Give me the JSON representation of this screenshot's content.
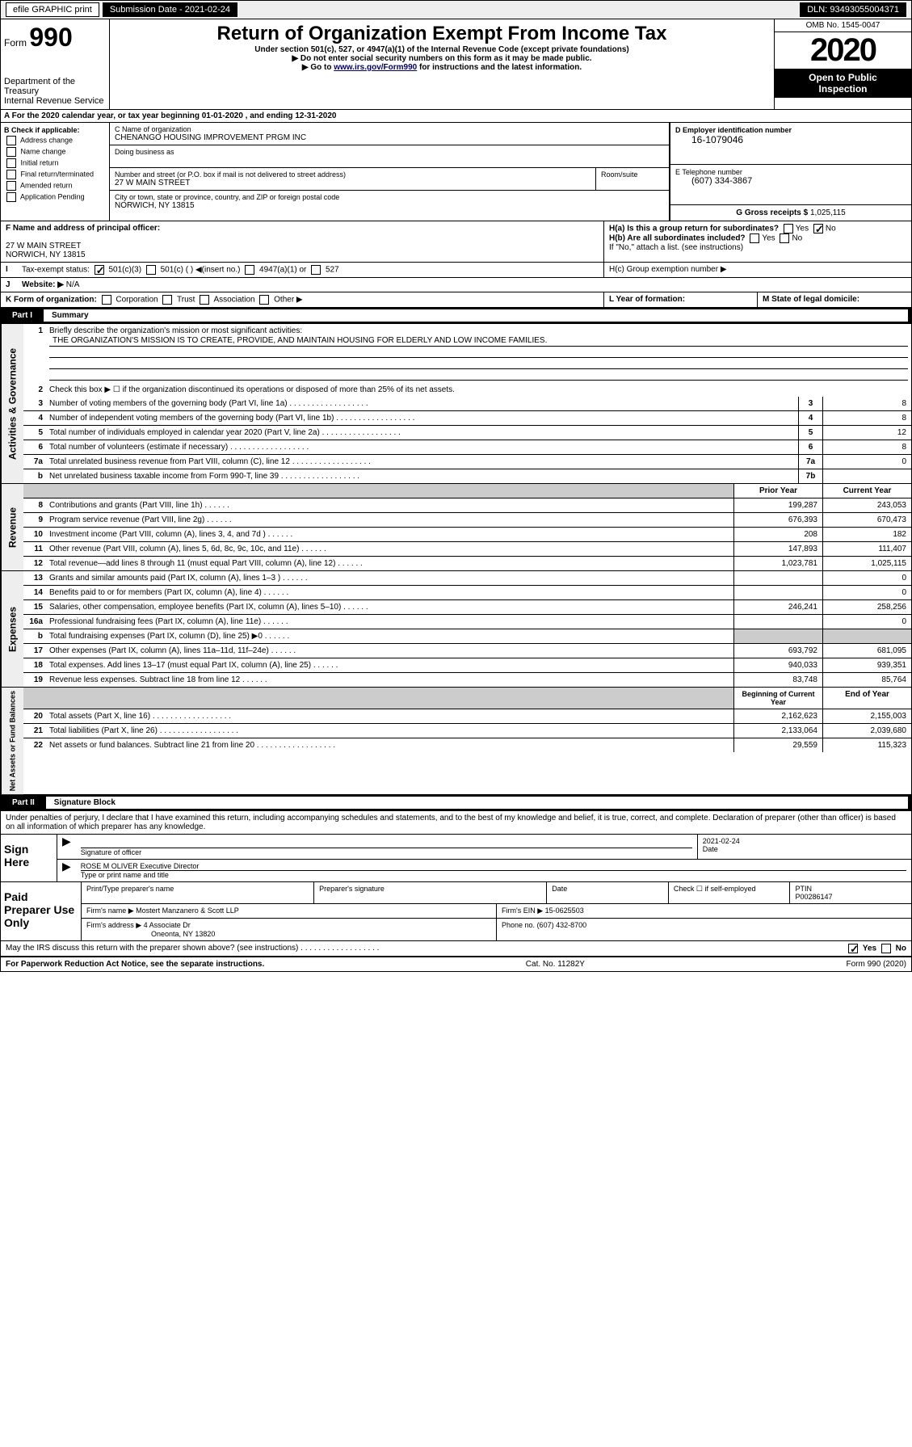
{
  "colors": {
    "black": "#000000",
    "white": "#ffffff",
    "grey_bg": "#eeeeee",
    "shade": "#cccccc",
    "link": "#000066"
  },
  "topbar": {
    "efile": "efile GRAPHIC print",
    "subdate_label": "Submission Date - 2021-02-24",
    "dln": "DLN: 93493055004371"
  },
  "header": {
    "form": "Form",
    "form_num": "990",
    "dept": "Department of the Treasury",
    "irs": "Internal Revenue Service",
    "title": "Return of Organization Exempt From Income Tax",
    "subtitle": "Under section 501(c), 527, or 4947(a)(1) of the Internal Revenue Code (except private foundations)",
    "note1": "▶ Do not enter social security numbers on this form as it may be made public.",
    "note2_pre": "▶ Go to ",
    "note2_link": "www.irs.gov/Form990",
    "note2_post": " for instructions and the latest information.",
    "omb": "OMB No. 1545-0047",
    "year": "2020",
    "open": "Open to Public",
    "insp": "Inspection"
  },
  "rowA": "A For the 2020 calendar year, or tax year beginning 01-01-2020 , and ending 12-31-2020",
  "boxB": {
    "label": "B Check if applicable:",
    "opts": [
      "Address change",
      "Name change",
      "Initial return",
      "Final return/terminated",
      "Amended return",
      "Application Pending"
    ]
  },
  "boxC": {
    "name_label": "C Name of organization",
    "name": "CHENANGO HOUSING IMPROVEMENT PRGM INC",
    "dba_label": "Doing business as",
    "addr_label": "Number and street (or P.O. box if mail is not delivered to street address)",
    "room_label": "Room/suite",
    "addr": "27 W MAIN STREET",
    "city_label": "City or town, state or province, country, and ZIP or foreign postal code",
    "city": "NORWICH, NY 13815"
  },
  "boxD": {
    "label": "D Employer identification number",
    "val": "16-1079046"
  },
  "boxE": {
    "label": "E Telephone number",
    "val": "(607) 334-3867"
  },
  "boxG": {
    "label": "G Gross receipts $",
    "val": "1,025,115"
  },
  "boxF": {
    "label": "F Name and address of principal officer:",
    "addr1": "27 W MAIN STREET",
    "addr2": "NORWICH, NY 13815"
  },
  "boxH": {
    "a": "H(a) Is this a group return for subordinates?",
    "b": "H(b) Are all subordinates included?",
    "note": "If \"No,\" attach a list. (see instructions)",
    "c": "H(c) Group exemption number ▶",
    "yes": "Yes",
    "no": "No"
  },
  "rowI": {
    "label": "I",
    "txt": "Tax-exempt status:",
    "opt1": "501(c)(3)",
    "opt2": "501(c) ( ) ◀(insert no.)",
    "opt3": "4947(a)(1) or",
    "opt4": "527"
  },
  "rowJ": {
    "label": "J",
    "txt": "Website: ▶",
    "val": "N/A"
  },
  "rowK": {
    "txt": "K Form of organization:",
    "opts": [
      "Corporation",
      "Trust",
      "Association",
      "Other ▶"
    ]
  },
  "rowL": {
    "txt": "L Year of formation:"
  },
  "rowM": {
    "txt": "M State of legal domicile:"
  },
  "part1": {
    "label": "Part I",
    "title": "Summary"
  },
  "summary": {
    "q1": "Briefly describe the organization's mission or most significant activities:",
    "mission": "THE ORGANIZATION'S MISSION IS TO CREATE, PROVIDE, AND MAINTAIN HOUSING FOR ELDERLY AND LOW INCOME FAMILIES.",
    "q2": "Check this box ▶ ☐ if the organization discontinued its operations or disposed of more than 25% of its net assets.",
    "lines": [
      {
        "n": "3",
        "t": "Number of voting members of the governing body (Part VI, line 1a)",
        "b": "3",
        "v": "8"
      },
      {
        "n": "4",
        "t": "Number of independent voting members of the governing body (Part VI, line 1b)",
        "b": "4",
        "v": "8"
      },
      {
        "n": "5",
        "t": "Total number of individuals employed in calendar year 2020 (Part V, line 2a)",
        "b": "5",
        "v": "12"
      },
      {
        "n": "6",
        "t": "Total number of volunteers (estimate if necessary)",
        "b": "6",
        "v": "8"
      },
      {
        "n": "7a",
        "t": "Total unrelated business revenue from Part VIII, column (C), line 12",
        "b": "7a",
        "v": "0"
      },
      {
        "n": "b",
        "t": "Net unrelated business taxable income from Form 990-T, line 39",
        "b": "7b",
        "v": ""
      }
    ]
  },
  "revenue": {
    "hdr_prior": "Prior Year",
    "hdr_curr": "Current Year",
    "rows": [
      {
        "n": "8",
        "t": "Contributions and grants (Part VIII, line 1h)",
        "p": "199,287",
        "c": "243,053"
      },
      {
        "n": "9",
        "t": "Program service revenue (Part VIII, line 2g)",
        "p": "676,393",
        "c": "670,473"
      },
      {
        "n": "10",
        "t": "Investment income (Part VIII, column (A), lines 3, 4, and 7d )",
        "p": "208",
        "c": "182"
      },
      {
        "n": "11",
        "t": "Other revenue (Part VIII, column (A), lines 5, 6d, 8c, 9c, 10c, and 11e)",
        "p": "147,893",
        "c": "111,407"
      },
      {
        "n": "12",
        "t": "Total revenue—add lines 8 through 11 (must equal Part VIII, column (A), line 12)",
        "p": "1,023,781",
        "c": "1,025,115"
      }
    ]
  },
  "expenses": {
    "rows": [
      {
        "n": "13",
        "t": "Grants and similar amounts paid (Part IX, column (A), lines 1–3 )",
        "p": "",
        "c": "0"
      },
      {
        "n": "14",
        "t": "Benefits paid to or for members (Part IX, column (A), line 4)",
        "p": "",
        "c": "0"
      },
      {
        "n": "15",
        "t": "Salaries, other compensation, employee benefits (Part IX, column (A), lines 5–10)",
        "p": "246,241",
        "c": "258,256"
      },
      {
        "n": "16a",
        "t": "Professional fundraising fees (Part IX, column (A), line 11e)",
        "p": "",
        "c": "0"
      },
      {
        "n": "b",
        "t": "Total fundraising expenses (Part IX, column (D), line 25) ▶0",
        "p": "shade",
        "c": "shade"
      },
      {
        "n": "17",
        "t": "Other expenses (Part IX, column (A), lines 11a–11d, 11f–24e)",
        "p": "693,792",
        "c": "681,095"
      },
      {
        "n": "18",
        "t": "Total expenses. Add lines 13–17 (must equal Part IX, column (A), line 25)",
        "p": "940,033",
        "c": "939,351"
      },
      {
        "n": "19",
        "t": "Revenue less expenses. Subtract line 18 from line 12",
        "p": "83,748",
        "c": "85,764"
      }
    ]
  },
  "netassets": {
    "hdr_begin": "Beginning of Current Year",
    "hdr_end": "End of Year",
    "rows": [
      {
        "n": "20",
        "t": "Total assets (Part X, line 16)",
        "p": "2,162,623",
        "c": "2,155,003"
      },
      {
        "n": "21",
        "t": "Total liabilities (Part X, line 26)",
        "p": "2,133,064",
        "c": "2,039,680"
      },
      {
        "n": "22",
        "t": "Net assets or fund balances. Subtract line 21 from line 20",
        "p": "29,559",
        "c": "115,323"
      }
    ]
  },
  "part2": {
    "label": "Part II",
    "title": "Signature Block"
  },
  "perjury": "Under penalties of perjury, I declare that I have examined this return, including accompanying schedules and statements, and to the best of my knowledge and belief, it is true, correct, and complete. Declaration of preparer (other than officer) is based on all information of which preparer has any knowledge.",
  "sign": {
    "here": "Sign Here",
    "sig_label": "Signature of officer",
    "date_label": "Date",
    "date_val": "2021-02-24",
    "name": "ROSE M OLIVER Executive Director",
    "name_label": "Type or print name and title"
  },
  "paid": {
    "title": "Paid Preparer Use Only",
    "r1": {
      "a": "Print/Type preparer's name",
      "b": "Preparer's signature",
      "c": "Date",
      "d": "Check ☐ if self-employed",
      "e": "PTIN",
      "ev": "P00286147"
    },
    "r2": {
      "a": "Firm's name ▶",
      "av": "Mostert Manzanero & Scott LLP",
      "b": "Firm's EIN ▶",
      "bv": "15-0625503"
    },
    "r3": {
      "a": "Firm's address ▶",
      "av": "4 Associate Dr",
      "av2": "Oneonta, NY 13820",
      "b": "Phone no.",
      "bv": "(607) 432-8700"
    }
  },
  "discuss": "May the IRS discuss this return with the preparer shown above? (see instructions)",
  "footer": {
    "l": "For Paperwork Reduction Act Notice, see the separate instructions.",
    "m": "Cat. No. 11282Y",
    "r": "Form 990 (2020)"
  },
  "labels": {
    "gov": "Activities & Governance",
    "rev": "Revenue",
    "exp": "Expenses",
    "net": "Net Assets or Fund Balances"
  }
}
